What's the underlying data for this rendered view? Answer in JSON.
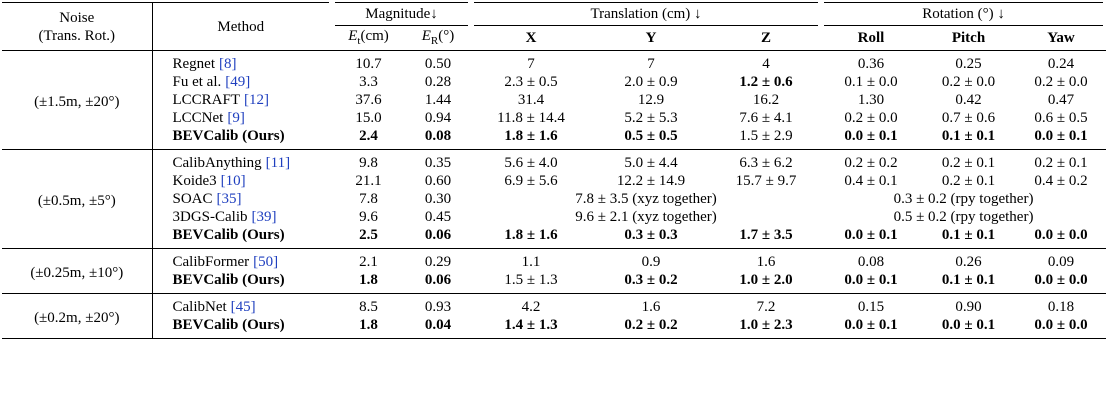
{
  "header": {
    "noise": [
      "Noise",
      "(Trans. Rot.)"
    ],
    "method": "Method",
    "groups": [
      {
        "text": "Magnitude↓",
        "span": 2
      },
      {
        "text": "Translation (cm) ↓",
        "span": 3
      },
      {
        "text": "Rotation (°) ↓",
        "span": 3
      }
    ],
    "columns": [
      {
        "symbol": "E",
        "sub": "t",
        "unit": "(cm)"
      },
      {
        "symbol": "E",
        "sub": "R",
        "unit": "(°)"
      },
      "X",
      "Y",
      "Z",
      "Roll",
      "Pitch",
      "Yaw"
    ]
  },
  "groups": [
    {
      "noise": "(±1.5m, ±20°)",
      "rows": [
        {
          "method": "Regnet",
          "ref": "[8]",
          "cells": [
            "10.7",
            "0.50",
            "7",
            "7",
            "4",
            "0.36",
            "0.25",
            "0.24"
          ]
        },
        {
          "method": "Fu et al.",
          "ref": "[49]",
          "cells": [
            "3.3",
            "0.28",
            "2.3 ± 0.5",
            "2.0 ± 0.9",
            {
              "text": "1.2 ± 0.6",
              "bold": true
            },
            "0.1 ± 0.0",
            "0.2 ± 0.0",
            "0.2 ± 0.0"
          ]
        },
        {
          "method": "LCCRAFT",
          "ref": "[12]",
          "cells": [
            "37.6",
            "1.44",
            "31.4",
            "12.9",
            "16.2",
            "1.30",
            "0.42",
            "0.47"
          ]
        },
        {
          "method": "LCCNet",
          "ref": "[9]",
          "cells": [
            "15.0",
            "0.94",
            "11.8 ± 14.4",
            "5.2 ± 5.3",
            "7.6 ± 4.1",
            "0.2 ± 0.0",
            "0.7 ± 0.6",
            "0.6 ± 0.5"
          ]
        },
        {
          "method": "BEVCalib (Ours)",
          "bold": true,
          "cells": [
            {
              "text": "2.4",
              "bold": true
            },
            {
              "text": "0.08",
              "bold": true
            },
            {
              "text": "1.8 ± 1.6",
              "bold": true
            },
            {
              "text": "0.5 ± 0.5",
              "bold": true
            },
            "1.5 ± 2.9",
            {
              "text": "0.0 ± 0.1",
              "bold": true
            },
            {
              "text": "0.1 ± 0.1",
              "bold": true
            },
            {
              "text": "0.0 ± 0.1",
              "bold": true
            }
          ]
        }
      ]
    },
    {
      "noise": "(±0.5m, ±5°)",
      "rows": [
        {
          "method": "CalibAnything",
          "ref": "[11]",
          "cells": [
            "9.8",
            "0.35",
            "5.6 ± 4.0",
            "5.0 ± 4.4",
            "6.3 ± 6.2",
            "0.2 ± 0.2",
            "0.2 ± 0.1",
            "0.2 ± 0.1"
          ]
        },
        {
          "method": "Koide3",
          "ref": "[10]",
          "cells": [
            "21.1",
            "0.60",
            "6.9 ± 5.6",
            "12.2 ± 14.9",
            "15.7 ± 9.7",
            "0.4 ± 0.1",
            "0.2 ± 0.1",
            "0.4 ± 0.2"
          ]
        },
        {
          "method": "SOAC",
          "ref": "[35]",
          "cells": [
            "7.8",
            "0.30",
            {
              "text": "7.8 ± 3.5 (xyz together)",
              "span": 3
            },
            {
              "text": "0.3 ± 0.2 (rpy together)",
              "span": 3
            }
          ]
        },
        {
          "method": "3DGS-Calib",
          "ref": "[39]",
          "cells": [
            "9.6",
            "0.45",
            {
              "text": "9.6 ± 2.1 (xyz together)",
              "span": 3
            },
            {
              "text": "0.5 ± 0.2 (rpy together)",
              "span": 3
            }
          ]
        },
        {
          "method": "BEVCalib (Ours)",
          "bold": true,
          "cells": [
            {
              "text": "2.5",
              "bold": true
            },
            {
              "text": "0.06",
              "bold": true
            },
            {
              "text": "1.8 ± 1.6",
              "bold": true
            },
            {
              "text": "0.3 ± 0.3",
              "bold": true
            },
            {
              "text": "1.7 ± 3.5",
              "bold": true
            },
            {
              "text": "0.0 ± 0.1",
              "bold": true
            },
            {
              "text": "0.1 ± 0.1",
              "bold": true
            },
            {
              "text": "0.0 ± 0.0",
              "bold": true
            }
          ]
        }
      ]
    },
    {
      "noise": "(±0.25m, ±10°)",
      "rows": [
        {
          "method": "CalibFormer",
          "ref": "[50]",
          "cells": [
            "2.1",
            "0.29",
            "1.1",
            "0.9",
            "1.6",
            "0.08",
            "0.26",
            "0.09"
          ]
        },
        {
          "method": "BEVCalib (Ours)",
          "bold": true,
          "cells": [
            {
              "text": "1.8",
              "bold": true
            },
            {
              "text": "0.06",
              "bold": true
            },
            "1.5 ± 1.3",
            {
              "text": "0.3 ± 0.2",
              "bold": true
            },
            {
              "text": "1.0 ± 2.0",
              "bold": true
            },
            {
              "text": "0.0 ± 0.1",
              "bold": true
            },
            {
              "text": "0.1 ± 0.1",
              "bold": true
            },
            {
              "text": "0.0 ± 0.0",
              "bold": true
            }
          ]
        }
      ]
    },
    {
      "noise": "(±0.2m, ±20°)",
      "rows": [
        {
          "method": "CalibNet",
          "ref": "[45]",
          "cells": [
            "8.5",
            "0.93",
            "4.2",
            "1.6",
            "7.2",
            "0.15",
            "0.90",
            "0.18"
          ]
        },
        {
          "method": "BEVCalib (Ours)",
          "bold": true,
          "cells": [
            {
              "text": "1.8",
              "bold": true
            },
            {
              "text": "0.04",
              "bold": true
            },
            {
              "text": "1.4 ± 1.3",
              "bold": true
            },
            {
              "text": "0.2 ± 0.2",
              "bold": true
            },
            {
              "text": "1.0 ± 2.3",
              "bold": true
            },
            {
              "text": "0.0 ± 0.1",
              "bold": true
            },
            {
              "text": "0.0 ± 0.1",
              "bold": true
            },
            {
              "text": "0.0 ± 0.0",
              "bold": true
            }
          ]
        }
      ]
    }
  ]
}
